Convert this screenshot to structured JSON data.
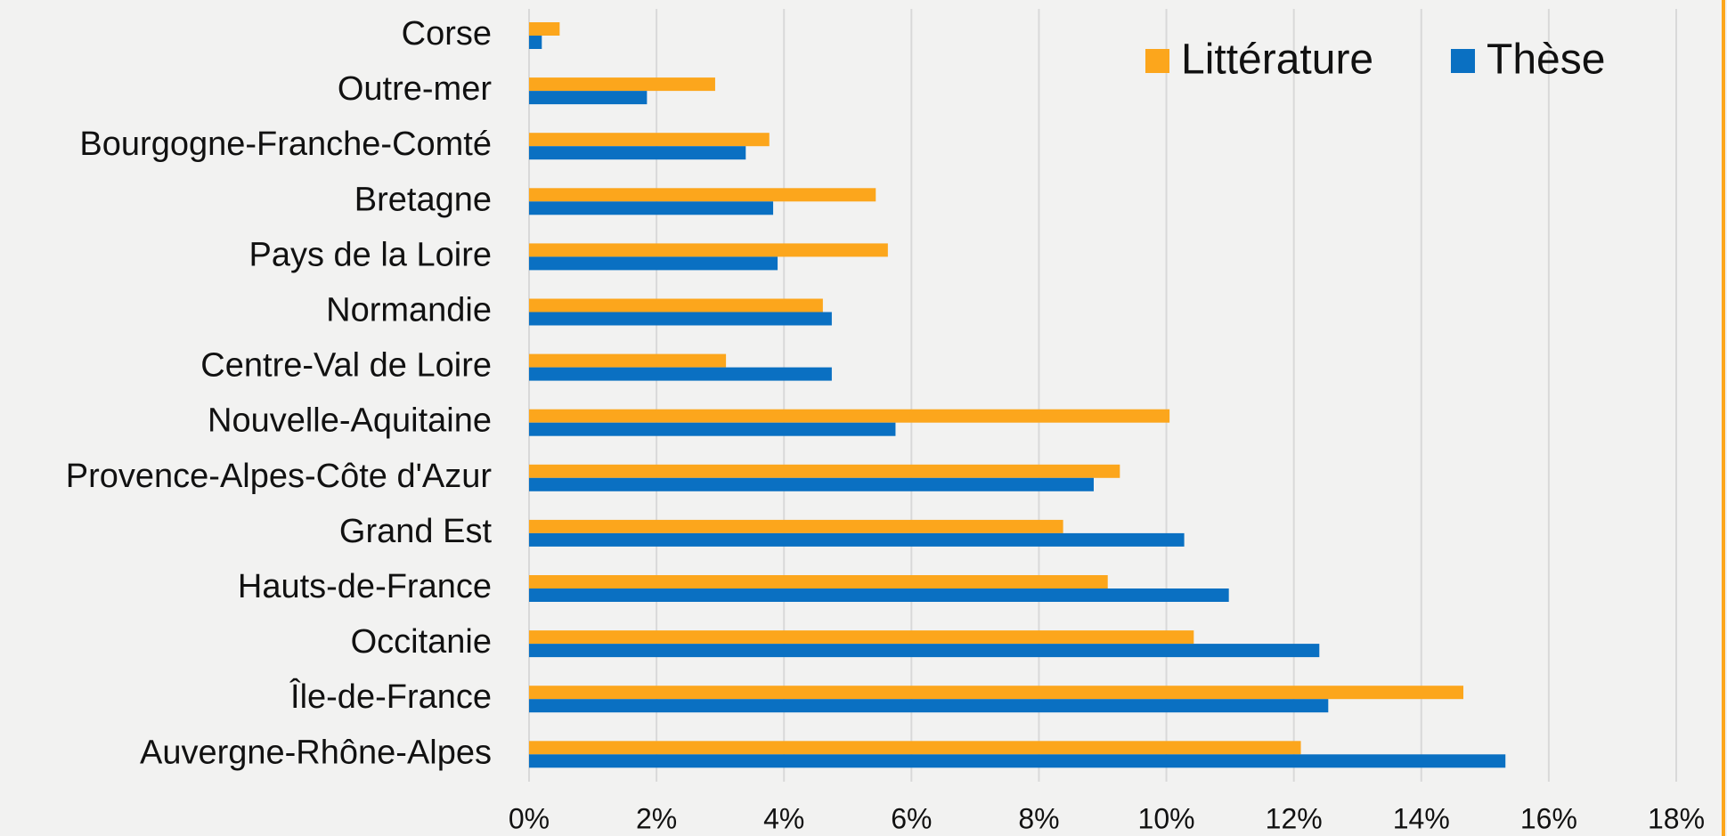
{
  "chart_data": {
    "type": "bar",
    "orientation": "horizontal",
    "categories": [
      "Corse",
      "Outre-mer",
      "Bourgogne-Franche-Comté",
      "Bretagne",
      "Pays de la Loire",
      "Normandie",
      "Centre-Val de Loire",
      "Nouvelle-Aquitaine",
      "Provence-Alpes-Côte d'Azur",
      "Grand Est",
      "Hauts-de-France",
      "Occitanie",
      "Île-de-France",
      "Auvergne-Rhône-Alpes"
    ],
    "series": [
      {
        "name": "Littérature",
        "color": "#fca61c",
        "values": [
          0.48,
          2.92,
          3.77,
          5.44,
          5.63,
          4.61,
          3.09,
          10.05,
          9.27,
          8.38,
          9.08,
          10.43,
          14.66,
          12.11
        ]
      },
      {
        "name": "Thèse",
        "color": "#0a70c2",
        "values": [
          0.2,
          1.85,
          3.4,
          3.83,
          3.9,
          4.75,
          4.75,
          5.75,
          8.86,
          10.28,
          10.98,
          12.4,
          12.54,
          15.32
        ]
      }
    ],
    "xlim": [
      0,
      18
    ],
    "xticks": [
      {
        "value": 0,
        "label": "0%"
      },
      {
        "value": 2,
        "label": "2%"
      },
      {
        "value": 4,
        "label": "4%"
      },
      {
        "value": 6,
        "label": "6%"
      },
      {
        "value": 8,
        "label": "8%"
      },
      {
        "value": 10,
        "label": "10%"
      },
      {
        "value": 12,
        "label": "12%"
      },
      {
        "value": 14,
        "label": "14%"
      },
      {
        "value": 16,
        "label": "16%"
      },
      {
        "value": 18,
        "label": "18%"
      }
    ],
    "grid": true,
    "legend": "upper right"
  }
}
